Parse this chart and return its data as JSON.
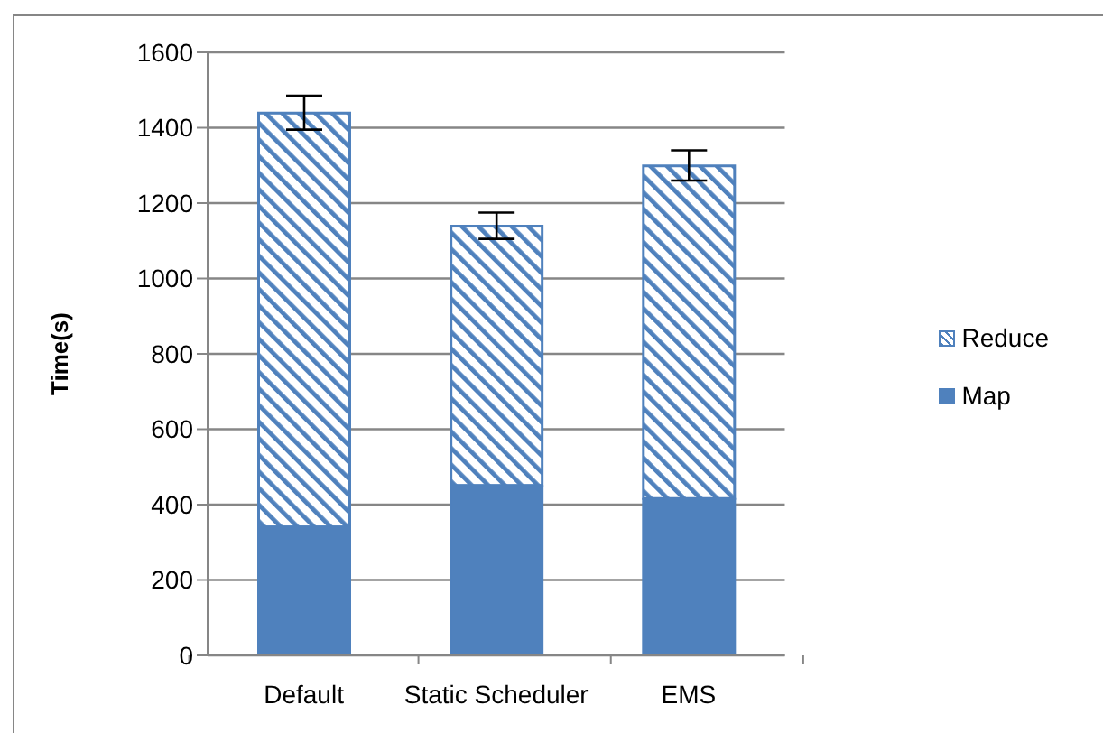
{
  "chart_data": {
    "type": "bar",
    "ylabel": "Time(s)",
    "categories": [
      "Default",
      "Static Scheduler",
      "EMS"
    ],
    "stacked": true,
    "series": [
      {
        "name": "Map",
        "color": "#4f81bd",
        "values": [
          340,
          450,
          415
        ]
      },
      {
        "name": "Reduce",
        "color": "#4f81bd",
        "values": [
          1100,
          690,
          885
        ],
        "errors": [
          45,
          35,
          40
        ]
      }
    ],
    "ylim": [
      0,
      1600
    ],
    "yticks": [
      0,
      200,
      400,
      600,
      800,
      1000,
      1200,
      1400,
      1600
    ],
    "grid": "y",
    "legend": "right"
  }
}
